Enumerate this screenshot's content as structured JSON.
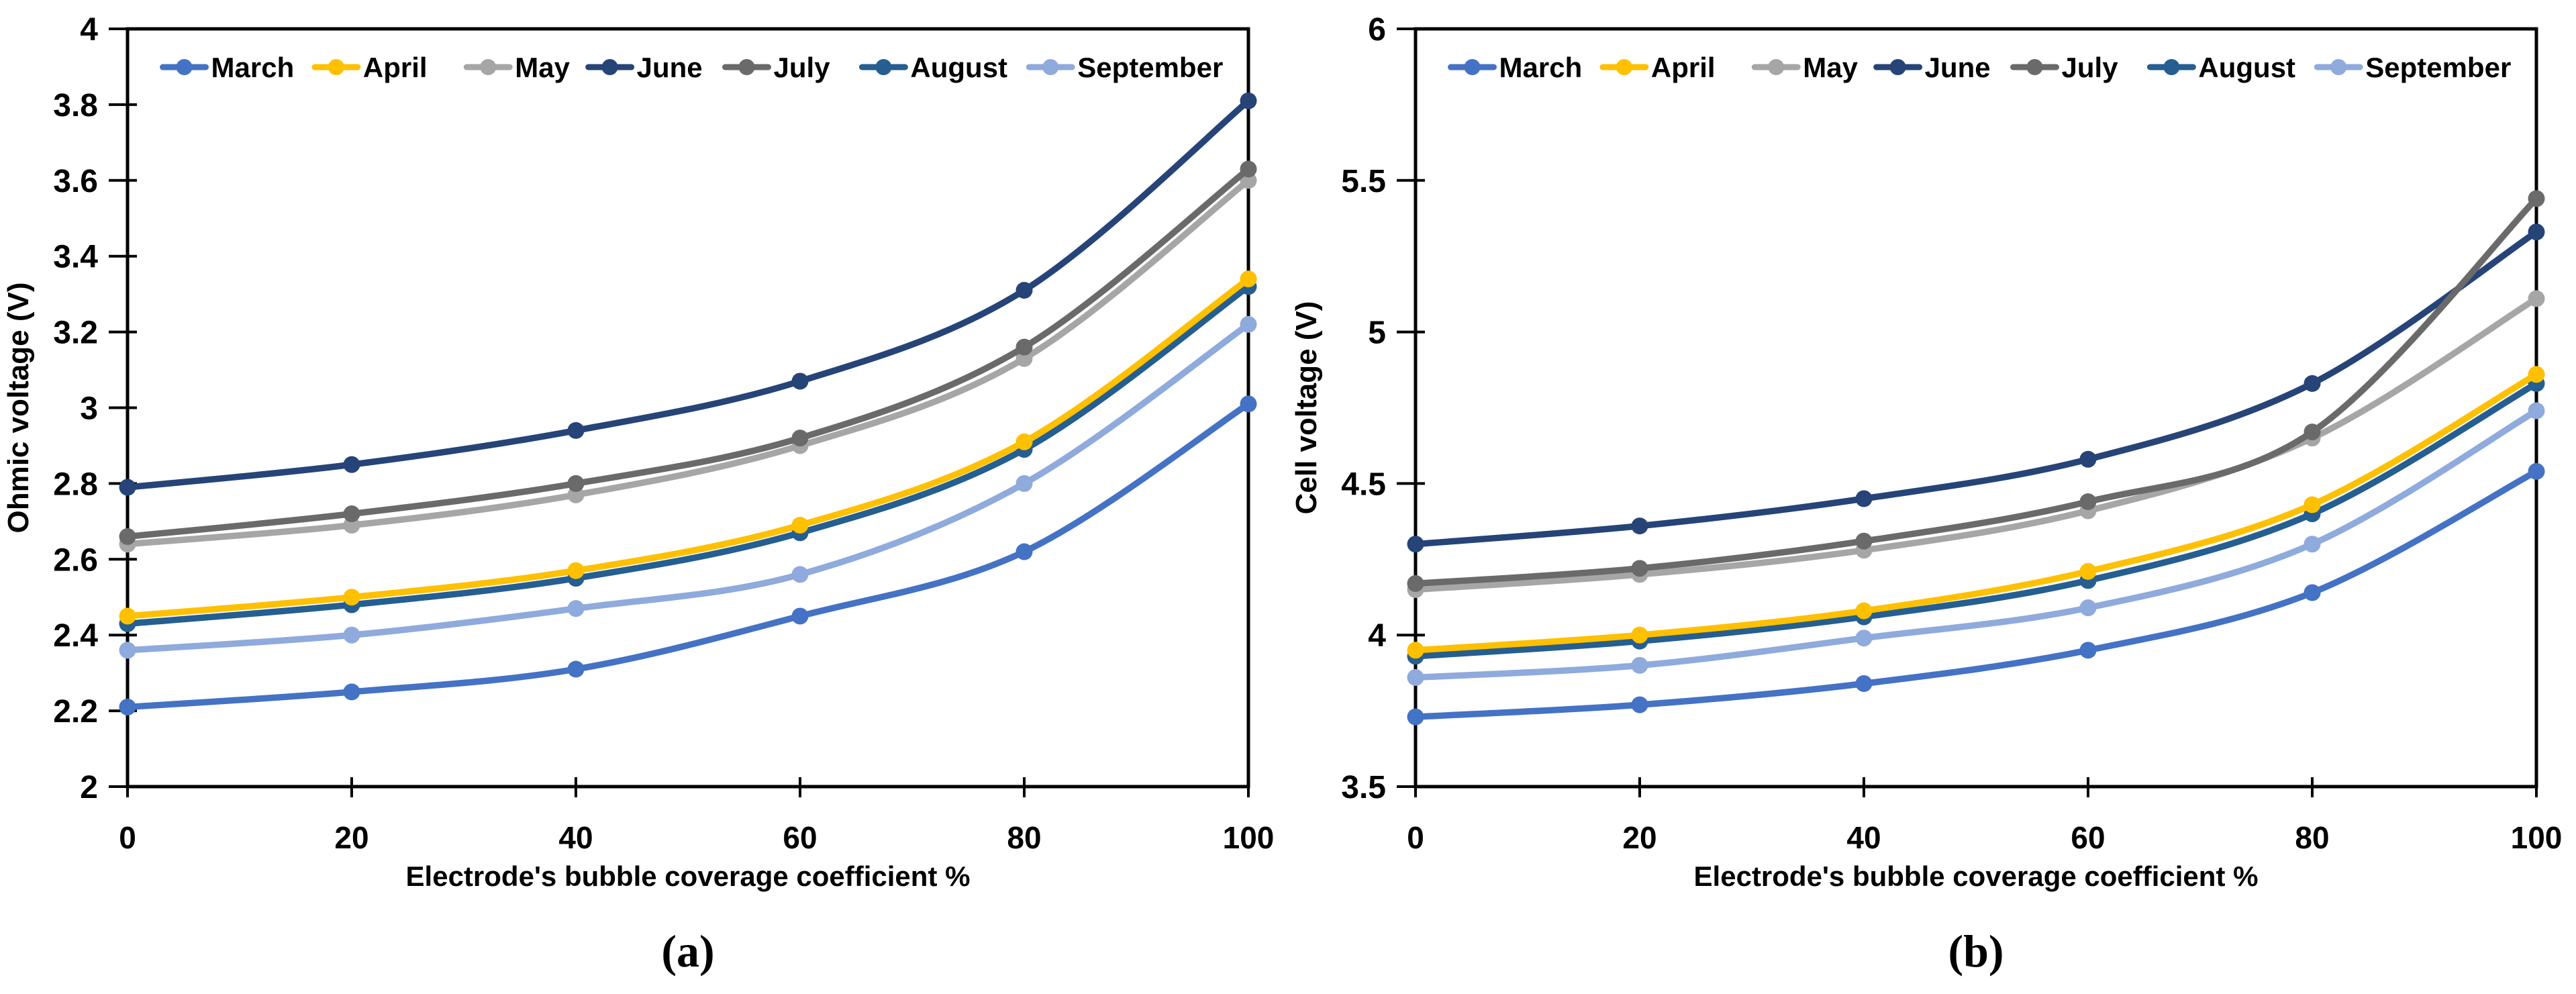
{
  "figure": {
    "background": "#ffffff"
  },
  "legend": {
    "labels": [
      "March",
      "April",
      "May",
      "June",
      "July",
      "August",
      "September"
    ]
  },
  "colors": {
    "March": "#4472C4",
    "April": "#FFC000",
    "May": "#A6A6A6",
    "June": "#264478",
    "July": "#6A6A6A",
    "August": "#255E91",
    "September": "#8FAADC"
  },
  "chart_data": [
    {
      "id": "a",
      "type": "line",
      "caption": "(a)",
      "xlabel": "Electrode's bubble coverage coefficient %",
      "ylabel": "Ohmic voltage (V)",
      "x": [
        0,
        20,
        40,
        60,
        80,
        100
      ],
      "xlim": [
        0,
        100
      ],
      "ylim": [
        2,
        4
      ],
      "xtick_values": [
        0,
        20,
        40,
        60,
        80,
        100
      ],
      "xtick_labels": [
        "0",
        "20",
        "40",
        "60",
        "80",
        "100"
      ],
      "ytick_values": [
        2,
        2.2,
        2.4,
        2.6,
        2.8,
        3,
        3.2,
        3.4,
        3.6,
        3.8,
        4
      ],
      "ytick_labels": [
        "2",
        "2.2",
        "2.4",
        "2.6",
        "2.8",
        "3",
        "3.2",
        "3.4",
        "3.6",
        "3.8",
        "4"
      ],
      "grid": false,
      "legend_position": "top-inside",
      "series": [
        {
          "name": "March",
          "values": [
            2.21,
            2.25,
            2.31,
            2.45,
            2.62,
            3.01
          ]
        },
        {
          "name": "April",
          "values": [
            2.45,
            2.5,
            2.57,
            2.69,
            2.91,
            3.34
          ]
        },
        {
          "name": "May",
          "values": [
            2.64,
            2.69,
            2.77,
            2.9,
            3.13,
            3.6
          ]
        },
        {
          "name": "June",
          "values": [
            2.79,
            2.85,
            2.94,
            3.07,
            3.31,
            3.81
          ]
        },
        {
          "name": "July",
          "values": [
            2.66,
            2.72,
            2.8,
            2.92,
            3.16,
            3.63
          ]
        },
        {
          "name": "August",
          "values": [
            2.43,
            2.48,
            2.55,
            2.67,
            2.89,
            3.32
          ]
        },
        {
          "name": "September",
          "values": [
            2.36,
            2.4,
            2.47,
            2.56,
            2.8,
            3.22
          ]
        }
      ]
    },
    {
      "id": "b",
      "type": "line",
      "caption": "(b)",
      "xlabel": "Electrode's bubble coverage coefficient %",
      "ylabel": "Cell voltage (V)",
      "x": [
        0,
        20,
        40,
        60,
        80,
        100
      ],
      "xlim": [
        0,
        100
      ],
      "ylim": [
        3.5,
        6
      ],
      "xtick_values": [
        0,
        20,
        40,
        60,
        80,
        100
      ],
      "xtick_labels": [
        "0",
        "20",
        "40",
        "60",
        "80",
        "100"
      ],
      "ytick_values": [
        3.5,
        4,
        4.5,
        5,
        5.5,
        6
      ],
      "ytick_labels": [
        "3.5",
        "4",
        "4.5",
        "5",
        "5.5",
        "6"
      ],
      "grid": false,
      "legend_position": "top-inside",
      "series": [
        {
          "name": "March",
          "values": [
            3.73,
            3.77,
            3.84,
            3.95,
            4.14,
            4.54
          ]
        },
        {
          "name": "April",
          "values": [
            3.95,
            4.0,
            4.08,
            4.21,
            4.43,
            4.86
          ]
        },
        {
          "name": "May",
          "values": [
            4.15,
            4.2,
            4.28,
            4.41,
            4.65,
            5.11
          ]
        },
        {
          "name": "June",
          "values": [
            4.3,
            4.36,
            4.45,
            4.58,
            4.83,
            5.33
          ]
        },
        {
          "name": "July",
          "values": [
            4.17,
            4.22,
            4.31,
            4.44,
            4.67,
            5.44
          ]
        },
        {
          "name": "August",
          "values": [
            3.93,
            3.98,
            4.06,
            4.18,
            4.4,
            4.83
          ]
        },
        {
          "name": "September",
          "values": [
            3.86,
            3.9,
            3.99,
            4.09,
            4.3,
            4.74
          ]
        }
      ]
    }
  ]
}
